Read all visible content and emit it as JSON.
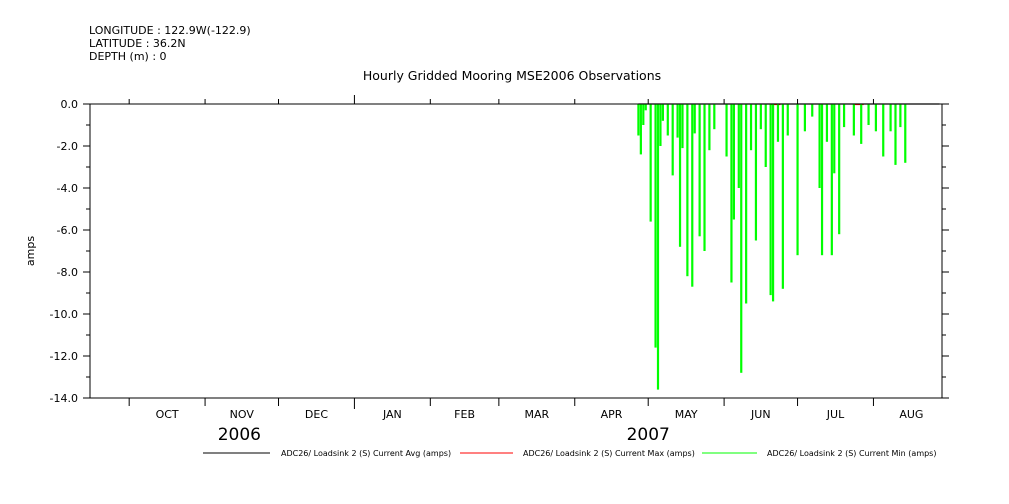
{
  "header": {
    "longitude": "LONGITUDE : 122.9W(-122.9)",
    "latitude": "LATITUDE : 36.2N",
    "depth": "DEPTH (m) : 0"
  },
  "chart_data": {
    "type": "line",
    "title": "Hourly Gridded Mooring MSE2006 Observations",
    "ylabel": "amps",
    "xlabel": "",
    "ylim": [
      -14.0,
      0.0
    ],
    "yticks": [
      0.0,
      -2.0,
      -4.0,
      -6.0,
      -8.0,
      -10.0,
      -12.0,
      -14.0
    ],
    "ytick_labels": [
      "0.0",
      "-2.0",
      "-4.0",
      "-6.0",
      "-8.0",
      "-10.0",
      "-12.0",
      "-14.0"
    ],
    "xlim": [
      "2006-09-15",
      "2007-08-29"
    ],
    "months": [
      {
        "label": "OCT",
        "start": "2006-10-01",
        "end": "2006-11-01"
      },
      {
        "label": "NOV",
        "start": "2006-11-01",
        "end": "2006-12-01"
      },
      {
        "label": "DEC",
        "start": "2006-12-01",
        "end": "2007-01-01"
      },
      {
        "label": "JAN",
        "start": "2007-01-01",
        "end": "2007-02-01"
      },
      {
        "label": "FEB",
        "start": "2007-02-01",
        "end": "2007-03-01"
      },
      {
        "label": "MAR",
        "start": "2007-03-01",
        "end": "2007-04-01"
      },
      {
        "label": "APR",
        "start": "2007-04-01",
        "end": "2007-05-01"
      },
      {
        "label": "MAY",
        "start": "2007-05-01",
        "end": "2007-06-01"
      },
      {
        "label": "JUN",
        "start": "2007-06-01",
        "end": "2007-07-01"
      },
      {
        "label": "JUL",
        "start": "2007-07-01",
        "end": "2007-08-01"
      },
      {
        "label": "AUG",
        "start": "2007-08-01",
        "end": "2007-09-01"
      }
    ],
    "years": [
      {
        "label": "2006",
        "position": "2006-11-15"
      },
      {
        "label": "2007",
        "position": "2007-05-01"
      }
    ],
    "legend_placement": "bottom",
    "series": [
      {
        "name": "ADC26/ Loadsink 2 (S) Current Avg (amps)",
        "color": "#000000",
        "x": [
          "2007-04-27",
          "2007-08-28"
        ],
        "values": [
          0.0,
          0.0
        ]
      },
      {
        "name": "ADC26/ Loadsink 2 (S) Current Max (amps)",
        "color": "#ff0000",
        "x": [
          "2007-06-20",
          "2007-06-24",
          "2007-07-24",
          "2007-07-28"
        ],
        "values": [
          0.0,
          0.0,
          0.0,
          0.0
        ]
      },
      {
        "name": "ADC26/ Loadsink 2 (S) Current Min (amps)",
        "color": "#00ff00",
        "x": [
          "2007-04-27",
          "2007-04-28",
          "2007-04-29",
          "2007-04-30",
          "2007-05-02",
          "2007-05-04",
          "2007-05-05",
          "2007-05-06",
          "2007-05-07",
          "2007-05-09",
          "2007-05-11",
          "2007-05-13",
          "2007-05-14",
          "2007-05-15",
          "2007-05-17",
          "2007-05-19",
          "2007-05-20",
          "2007-05-22",
          "2007-05-24",
          "2007-05-26",
          "2007-05-28",
          "2007-06-02",
          "2007-06-04",
          "2007-06-05",
          "2007-06-07",
          "2007-06-08",
          "2007-06-10",
          "2007-06-12",
          "2007-06-14",
          "2007-06-16",
          "2007-06-18",
          "2007-06-20",
          "2007-06-21",
          "2007-06-23",
          "2007-06-25",
          "2007-06-27",
          "2007-07-01",
          "2007-07-04",
          "2007-07-07",
          "2007-07-10",
          "2007-07-11",
          "2007-07-13",
          "2007-07-15",
          "2007-07-16",
          "2007-07-18",
          "2007-07-20",
          "2007-07-24",
          "2007-07-27",
          "2007-07-30",
          "2007-08-02",
          "2007-08-05",
          "2007-08-08",
          "2007-08-10",
          "2007-08-12",
          "2007-08-14"
        ],
        "values": [
          -1.5,
          -2.4,
          -1.0,
          -0.3,
          -5.6,
          -11.6,
          -13.6,
          -2.0,
          -0.8,
          -1.5,
          -3.4,
          -1.6,
          -6.8,
          -2.1,
          -8.2,
          -8.7,
          -1.4,
          -6.3,
          -7.0,
          -2.2,
          -1.2,
          -2.5,
          -8.5,
          -5.5,
          -4.0,
          -12.8,
          -9.5,
          -2.2,
          -6.5,
          -1.2,
          -3.0,
          -9.1,
          -9.4,
          -1.8,
          -8.8,
          -1.5,
          -7.2,
          -1.3,
          -0.6,
          -4.0,
          -7.2,
          -1.8,
          -7.2,
          -3.3,
          -6.2,
          -1.1,
          -1.5,
          -1.9,
          -1.0,
          -1.3,
          -2.5,
          -1.3,
          -2.9,
          -1.1,
          -2.8
        ]
      }
    ]
  }
}
